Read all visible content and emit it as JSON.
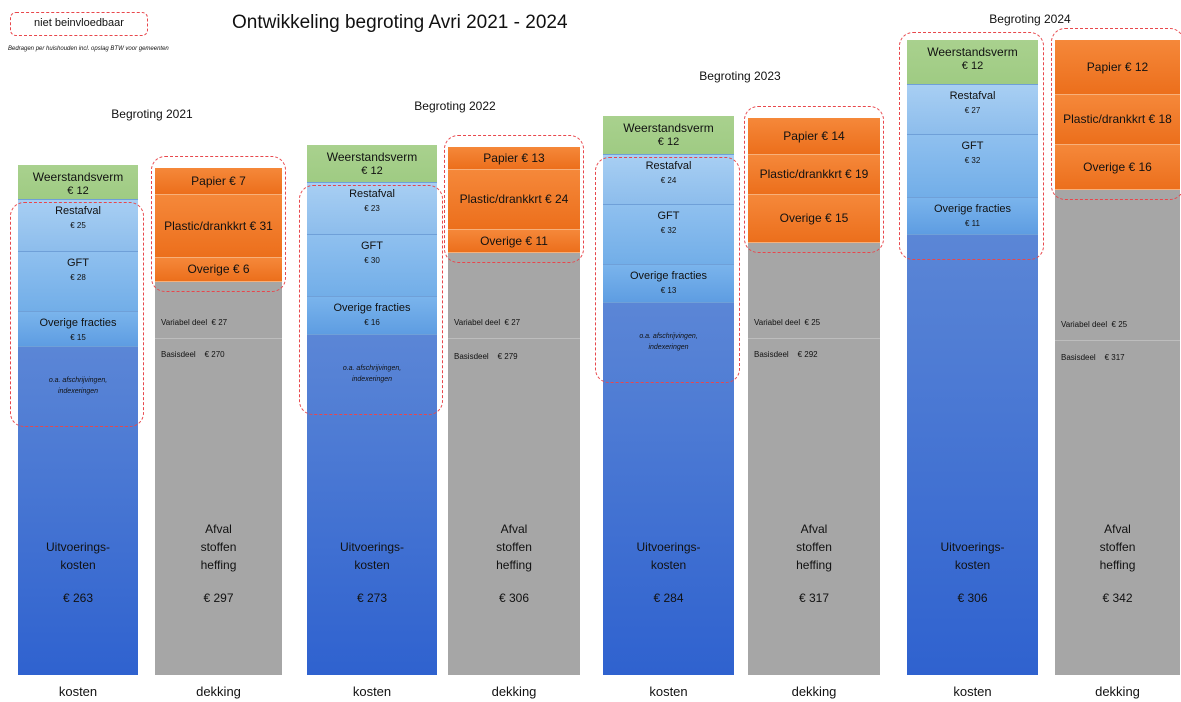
{
  "legend": "niet beinvloedbaar",
  "title": "Ontwikkeling begroting Avri 2021 - 2024",
  "subtitle": "Bedragen per huishouden incl. opslag BTW voor gemeenten",
  "years": [
    {
      "heading": "Begroting 2021",
      "kosten": {
        "blocks": [
          {
            "name": "Weerstandsverm",
            "value": "€ 12"
          },
          {
            "name": "Restafval",
            "value": "€ 25"
          },
          {
            "name": "GFT",
            "value": "€ 28"
          },
          {
            "name": "Overige fracties",
            "value": "€ 15"
          }
        ],
        "note": [
          "o.a. afschrijvingen,",
          "indexeringen"
        ],
        "main": [
          "Uitvoerings-",
          "kosten"
        ],
        "total": "€ 263",
        "label": "kosten"
      },
      "dekking": {
        "blocks": [
          "Papier € 7",
          "Plastic/drankkrt € 31",
          "Overige € 6"
        ],
        "variabel": "Variabel deel  € 27",
        "basis": "Basisdeel    € 270",
        "main": [
          "Afval",
          "stoffen",
          "heffing"
        ],
        "total": "€ 297",
        "label": "dekking"
      }
    },
    {
      "heading": "Begroting 2022",
      "kosten": {
        "blocks": [
          {
            "name": "Weerstandsverm",
            "value": "€ 12"
          },
          {
            "name": "Restafval",
            "value": "€ 23"
          },
          {
            "name": "GFT",
            "value": "€ 30"
          },
          {
            "name": "Overige fracties",
            "value": "€ 16"
          }
        ],
        "note": [
          "o.a. afschrijvingen,",
          "indexeringen"
        ],
        "main": [
          "Uitvoerings-",
          "kosten"
        ],
        "total": "€ 273",
        "label": "kosten"
      },
      "dekking": {
        "blocks": [
          "Papier € 13",
          "Plastic/drankkrt € 24",
          "Overige € 11"
        ],
        "variabel": "Variabel deel  € 27",
        "basis": "Basisdeel    € 279",
        "main": [
          "Afval",
          "stoffen",
          "heffing"
        ],
        "total": "€ 306",
        "label": "dekking"
      }
    },
    {
      "heading": "Begroting 2023",
      "kosten": {
        "blocks": [
          {
            "name": "Weerstandsverm",
            "value": "€ 12"
          },
          {
            "name": "Restafval",
            "value": "€ 24"
          },
          {
            "name": "GFT",
            "value": "€ 32"
          },
          {
            "name": "Overige fracties",
            "value": "€ 13"
          }
        ],
        "note": [
          "o.a. afschrijvingen,",
          "indexeringen"
        ],
        "main": [
          "Uitvoerings-",
          "kosten"
        ],
        "total": "€ 284",
        "label": "kosten"
      },
      "dekking": {
        "blocks": [
          "Papier € 14",
          "Plastic/drankkrt € 19",
          "Overige € 15"
        ],
        "variabel": "Variabel deel  € 25",
        "basis": "Basisdeel    € 292",
        "main": [
          "Afval",
          "stoffen",
          "heffing"
        ],
        "total": "€ 317",
        "label": "dekking"
      }
    },
    {
      "heading": "Begroting 2024",
      "kosten": {
        "blocks": [
          {
            "name": "Weerstandsverm",
            "value": "€ 12"
          },
          {
            "name": "Restafval",
            "value": "€ 27"
          },
          {
            "name": "GFT",
            "value": "€ 32"
          },
          {
            "name": "Overige fracties",
            "value": "€ 11"
          }
        ],
        "main": [
          "Uitvoerings-",
          "kosten"
        ],
        "total": "€ 306",
        "label": "kosten"
      },
      "dekking": {
        "blocks": [
          "Papier € 12",
          "Plastic/drankkrt € 18",
          "Overige € 16"
        ],
        "variabel": "Variabel deel  € 25",
        "basis": "Basisdeel    € 317",
        "main": [
          "Afval",
          "stoffen",
          "heffing"
        ],
        "total": "€ 342",
        "label": "dekking"
      }
    }
  ]
}
